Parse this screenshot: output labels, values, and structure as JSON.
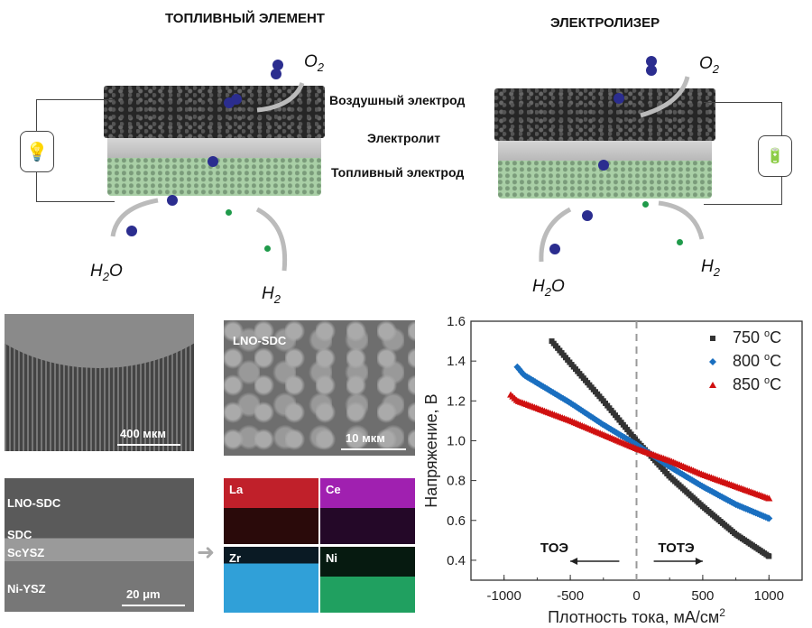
{
  "diagram": {
    "fuel_cell_title": "ТОПЛИВНЫЙ ЭЛЕМЕНТ",
    "electrolyzer_title": "ЭЛЕКТРОЛИЗЕР",
    "layer_labels": [
      "Воздушный электрод",
      "Электролит",
      "Топливный электрод"
    ],
    "species": {
      "o2": "O",
      "h2o_h": "H",
      "h2o_o": "O",
      "two": "2",
      "h": "H"
    },
    "icons": {
      "fuel_cell_device": "lightbulb-icon",
      "electrolyzer_device": "battery-charging-icon"
    },
    "colors": {
      "oxygen": "#2b2d8f",
      "hydrogen": "#1f9a4a",
      "air_electrode": "#262626",
      "electrolyte": "#c8c8c8",
      "fuel_electrode": "#a9cfa6"
    }
  },
  "micrographs": {
    "tube_scale": "400 мкм",
    "lno_sdc_label": "LNO-SDC",
    "lno_sdc_scale": "10 мкм",
    "cross_section_labels": [
      "LNO-SDC",
      "SDC",
      "ScYSZ",
      "Ni-YSZ"
    ],
    "cross_section_scale": "20 μm",
    "eds_maps": [
      {
        "element": "La",
        "color": "#c0202a"
      },
      {
        "element": "Ce",
        "color": "#a020b0"
      },
      {
        "element": "Zr",
        "color": "#30a0d8"
      },
      {
        "element": "Ni",
        "color": "#20a060"
      }
    ]
  },
  "chart_data": {
    "type": "scatter",
    "title": "",
    "xlabel": "Плотность тока, мА/см",
    "xlabel_sup": "2",
    "ylabel": "Напряжение, В",
    "xlim": [
      -1250,
      1250
    ],
    "ylim": [
      0.3,
      1.6
    ],
    "xticks": [
      -1000,
      -500,
      0,
      500,
      1000
    ],
    "yticks": [
      0.4,
      0.6,
      0.8,
      1.0,
      1.2,
      1.4,
      1.6
    ],
    "ytick_labels": [
      "0.4",
      "0.6",
      "0.8",
      "1.0",
      "1.2",
      "1.4",
      "1.6"
    ],
    "grid": false,
    "legend_position": "top-right",
    "annotations": {
      "left": "ТОЭ",
      "right": "ТОТЭ"
    },
    "series": [
      {
        "name": "750 °C",
        "label_num": "750 ",
        "label_sup": "o",
        "label_unit": "C",
        "color": "#333333",
        "marker": "square",
        "x": [
          -640,
          -500,
          -250,
          0,
          100,
          250,
          500,
          750,
          1000
        ],
        "y": [
          1.5,
          1.39,
          1.2,
          1.0,
          0.93,
          0.82,
          0.67,
          0.53,
          0.42
        ]
      },
      {
        "name": "800 °C",
        "label_num": "800 ",
        "label_sup": "o",
        "label_unit": "C",
        "color": "#1a6fc0",
        "marker": "diamond",
        "x": [
          -900,
          -850,
          -500,
          -250,
          0,
          250,
          500,
          750,
          1000
        ],
        "y": [
          1.37,
          1.33,
          1.19,
          1.08,
          0.98,
          0.87,
          0.77,
          0.68,
          0.61
        ]
      },
      {
        "name": "850 °C",
        "label_num": "850 ",
        "label_sup": "o",
        "label_unit": "C",
        "color": "#d01010",
        "marker": "triangle",
        "x": [
          -950,
          -900,
          -500,
          -250,
          0,
          250,
          500,
          750,
          1000
        ],
        "y": [
          1.23,
          1.2,
          1.1,
          1.03,
          0.96,
          0.9,
          0.83,
          0.77,
          0.71
        ]
      }
    ]
  }
}
